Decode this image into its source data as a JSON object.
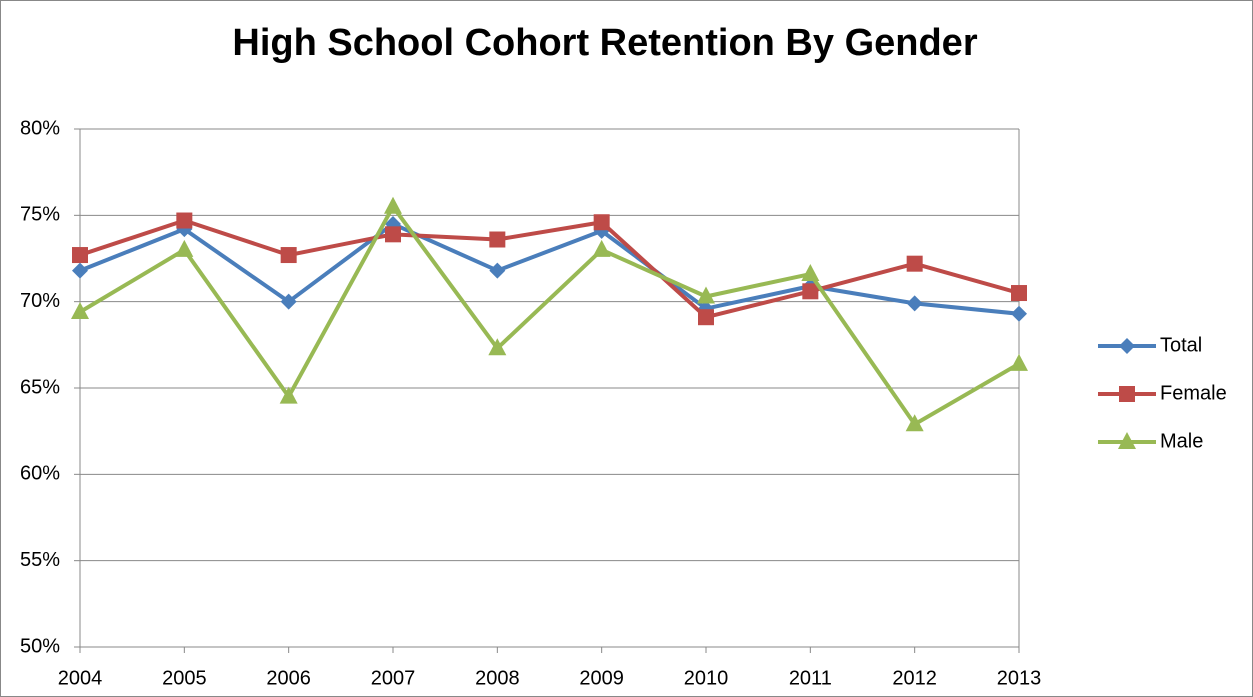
{
  "chart_data": {
    "type": "line",
    "title": "High School Cohort Retention By Gender",
    "categories": [
      "2004",
      "2005",
      "2006",
      "2007",
      "2008",
      "2009",
      "2010",
      "2011",
      "2012",
      "2013"
    ],
    "series": [
      {
        "name": "Total",
        "color": "#4a7ebb",
        "marker": "diamond",
        "values": [
          71.8,
          74.2,
          70.0,
          74.5,
          71.8,
          74.1,
          69.6,
          70.9,
          69.9,
          69.3
        ]
      },
      {
        "name": "Female",
        "color": "#be4b48",
        "marker": "square",
        "values": [
          72.7,
          74.7,
          72.7,
          73.9,
          73.6,
          74.6,
          69.1,
          70.6,
          72.2,
          70.5
        ]
      },
      {
        "name": "Male",
        "color": "#98b954",
        "marker": "triangle",
        "values": [
          69.4,
          73.0,
          64.5,
          75.5,
          67.3,
          73.0,
          70.3,
          71.6,
          62.9,
          66.4
        ]
      }
    ],
    "ylim": [
      50,
      80
    ],
    "yticks": [
      {
        "value": 50,
        "label": "50%"
      },
      {
        "value": 55,
        "label": "55%"
      },
      {
        "value": 60,
        "label": "60%"
      },
      {
        "value": 65,
        "label": "65%"
      },
      {
        "value": 70,
        "label": "70%"
      },
      {
        "value": 75,
        "label": "75%"
      },
      {
        "value": 80,
        "label": "80%"
      }
    ],
    "grid": true,
    "legend": "right"
  }
}
